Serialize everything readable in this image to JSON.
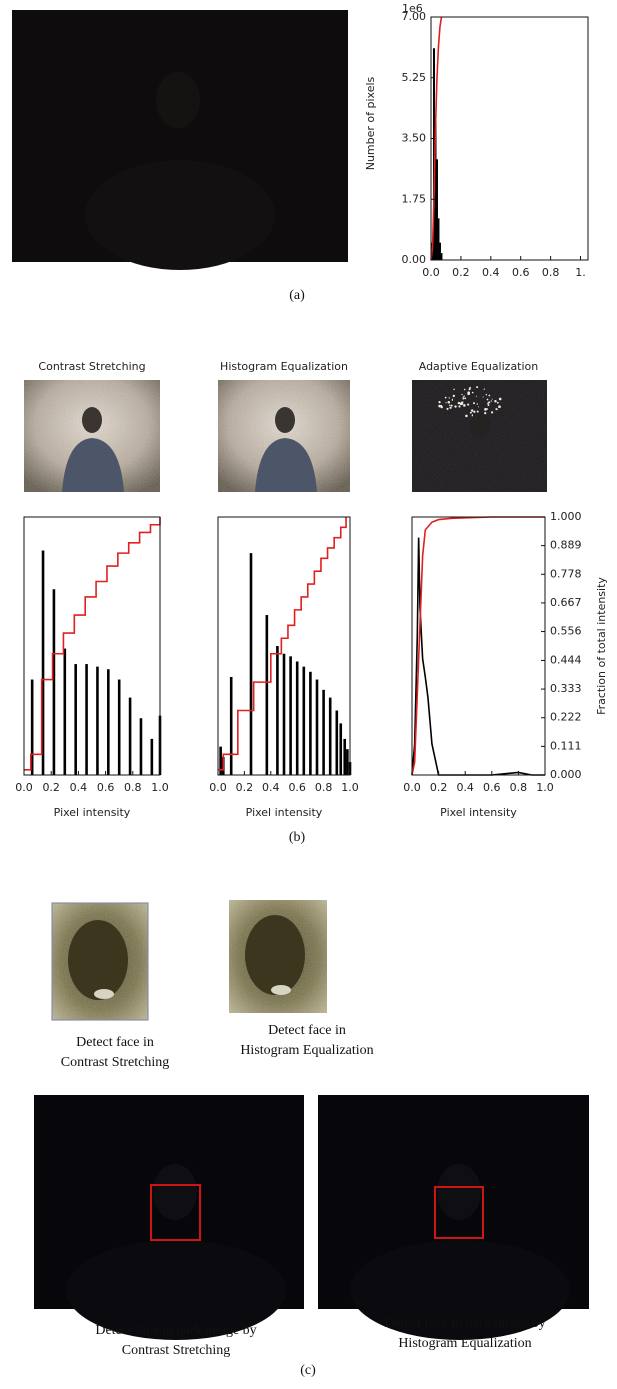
{
  "chart_data": [
    {
      "type": "bar",
      "ylabel": "Number of pixels",
      "offset_label": "1e6",
      "xlim": [
        0,
        1.05
      ],
      "xticks": [
        {
          "value": 0,
          "label": "0.0"
        },
        {
          "value": 0.2,
          "label": "0.2"
        },
        {
          "value": 0.4,
          "label": "0.4"
        },
        {
          "value": 0.6,
          "label": "0.6"
        },
        {
          "value": 0.8,
          "label": "0.8"
        },
        {
          "value": 1,
          "label": "1."
        }
      ],
      "ylim": [
        0,
        7
      ],
      "yticks": [
        {
          "value": 0,
          "label": "0.00"
        },
        1.75,
        {
          "value": 3.5,
          "label": "3.50"
        },
        5.25,
        {
          "value": 7,
          "label": "7.00"
        }
      ],
      "y2lim": [
        0,
        1
      ],
      "hist": {
        "color": "#000000",
        "x": [
          0.01,
          0.02,
          0.03,
          0.04,
          0.05,
          0.06,
          0.07
        ],
        "values": [
          0.5,
          6.1,
          4.0,
          2.9,
          1.2,
          0.5,
          0.2
        ]
      },
      "cdf": {
        "color": "#e02020",
        "axis": "y2",
        "x": [
          0,
          0.01,
          0.02,
          0.03,
          0.04,
          0.05,
          0.06,
          0.07
        ],
        "values": [
          0,
          0.05,
          0.25,
          0.55,
          0.75,
          0.88,
          0.96,
          1.0
        ]
      }
    },
    {
      "type": "bar",
      "title": "Contrast Stretching",
      "xlabel": "Pixel intensity",
      "xlim": [
        0,
        1
      ],
      "xticks": [
        {
          "value": 0,
          "label": "0.0"
        },
        {
          "value": 0.2,
          "label": "0.2"
        },
        {
          "value": 0.4,
          "label": "0.4"
        },
        {
          "value": 0.6,
          "label": "0.6"
        },
        {
          "value": 0.8,
          "label": "0.8"
        },
        {
          "value": 1,
          "label": "1.0"
        }
      ],
      "ylim": [
        0,
        1
      ],
      "y2lim": [
        0,
        1
      ],
      "hist": {
        "color": "#000000",
        "x": [
          0.06,
          0.14,
          0.22,
          0.3,
          0.38,
          0.46,
          0.54,
          0.62,
          0.7,
          0.78,
          0.86,
          0.94,
          1.0
        ],
        "values": [
          0.37,
          0.87,
          0.72,
          0.49,
          0.43,
          0.43,
          0.42,
          0.41,
          0.37,
          0.3,
          0.22,
          0.14,
          0.23
        ]
      },
      "cdf": {
        "color": "#e02020",
        "axis": "y2",
        "x": [
          0,
          0.05,
          0.05,
          0.13,
          0.13,
          0.21,
          0.21,
          0.29,
          0.29,
          0.37,
          0.37,
          0.45,
          0.45,
          0.53,
          0.53,
          0.61,
          0.61,
          0.69,
          0.69,
          0.77,
          0.77,
          0.85,
          0.85,
          0.93,
          0.93,
          1.0,
          1.0
        ],
        "values": [
          0.02,
          0.02,
          0.08,
          0.08,
          0.37,
          0.37,
          0.47,
          0.47,
          0.55,
          0.55,
          0.62,
          0.62,
          0.69,
          0.69,
          0.75,
          0.75,
          0.81,
          0.81,
          0.86,
          0.86,
          0.9,
          0.9,
          0.94,
          0.94,
          0.97,
          0.97,
          1.0
        ]
      }
    },
    {
      "type": "bar",
      "title": "Histogram Equalization",
      "xlabel": "Pixel intensity",
      "xlim": [
        0,
        1
      ],
      "xticks": [
        {
          "value": 0,
          "label": "0.0"
        },
        {
          "value": 0.2,
          "label": "0.2"
        },
        {
          "value": 0.4,
          "label": "0.4"
        },
        {
          "value": 0.6,
          "label": "0.6"
        },
        {
          "value": 0.8,
          "label": "0.8"
        },
        {
          "value": 1,
          "label": "1.0"
        }
      ],
      "ylim": [
        0,
        1
      ],
      "y2lim": [
        0,
        1
      ],
      "hist": {
        "color": "#000000",
        "x": [
          0.02,
          0.04,
          0.1,
          0.25,
          0.37,
          0.45,
          0.5,
          0.55,
          0.6,
          0.65,
          0.7,
          0.75,
          0.8,
          0.85,
          0.9,
          0.93,
          0.96,
          0.98,
          1.0
        ],
        "values": [
          0.11,
          0.07,
          0.38,
          0.86,
          0.62,
          0.5,
          0.47,
          0.46,
          0.44,
          0.42,
          0.4,
          0.37,
          0.33,
          0.3,
          0.25,
          0.2,
          0.14,
          0.1,
          0.05
        ]
      },
      "cdf": {
        "color": "#e02020",
        "axis": "y2",
        "x": [
          0,
          0.04,
          0.04,
          0.15,
          0.15,
          0.27,
          0.27,
          0.4,
          0.4,
          0.48,
          0.48,
          0.53,
          0.53,
          0.58,
          0.58,
          0.63,
          0.63,
          0.68,
          0.68,
          0.73,
          0.73,
          0.78,
          0.78,
          0.83,
          0.83,
          0.88,
          0.88,
          0.93,
          0.93,
          0.97,
          0.97
        ],
        "values": [
          0.02,
          0.02,
          0.08,
          0.08,
          0.25,
          0.25,
          0.36,
          0.36,
          0.47,
          0.47,
          0.53,
          0.53,
          0.58,
          0.58,
          0.64,
          0.64,
          0.69,
          0.69,
          0.74,
          0.74,
          0.79,
          0.79,
          0.84,
          0.84,
          0.88,
          0.88,
          0.92,
          0.92,
          0.96,
          0.96,
          1.0
        ]
      }
    },
    {
      "type": "line",
      "title": "Adaptive Equalization",
      "xlabel": "Pixel intensity",
      "y2label": "Fraction of total intensity",
      "xlim": [
        0,
        1
      ],
      "xticks": [
        {
          "value": 0,
          "label": "0.0"
        },
        {
          "value": 0.2,
          "label": "0.2"
        },
        {
          "value": 0.4,
          "label": "0.4"
        },
        {
          "value": 0.6,
          "label": "0.6"
        },
        {
          "value": 0.8,
          "label": "0.8"
        },
        {
          "value": 1,
          "label": "1.0"
        }
      ],
      "ylim": [
        0,
        1
      ],
      "y2lim": [
        0,
        1
      ],
      "y2ticks": [
        {
          "value": 0,
          "label": "0.000"
        },
        0.111,
        0.222,
        0.333,
        0.444,
        0.556,
        0.667,
        0.778,
        0.889,
        {
          "value": 1,
          "label": "1.000"
        }
      ],
      "hist": {
        "color": "#000000",
        "x": [
          0,
          0.02,
          0.04,
          0.05,
          0.06,
          0.08,
          0.1,
          0.12,
          0.15,
          0.2,
          0.3,
          0.6,
          0.8,
          0.9,
          1.0
        ],
        "values": [
          0.0,
          0.12,
          0.54,
          0.92,
          0.65,
          0.45,
          0.38,
          0.3,
          0.12,
          0.0,
          0.0,
          0.0,
          0.01,
          0.0,
          0.0
        ]
      },
      "cdf": {
        "color": "#e02020",
        "axis": "y2",
        "x": [
          0,
          0.02,
          0.05,
          0.08,
          0.1,
          0.15,
          0.2,
          0.3,
          0.6,
          1.0
        ],
        "values": [
          0,
          0.05,
          0.45,
          0.85,
          0.95,
          0.98,
          0.99,
          0.995,
          1.0,
          1.0
        ]
      }
    }
  ],
  "captions": {
    "a": "(a)",
    "b": "(b)",
    "c": "(c)"
  },
  "face_crops": [
    {
      "caption": [
        "Detect face in",
        "Contrast Stretching"
      ]
    },
    {
      "caption": [
        "Detect face in",
        "Histogram Equalization"
      ]
    }
  ],
  "dark_detections": [
    {
      "caption": [
        "Detect face in dark image by",
        "Contrast Stretching"
      ]
    },
    {
      "caption": [
        "Detect face in dark image by",
        "Histogram Equalization"
      ]
    }
  ]
}
